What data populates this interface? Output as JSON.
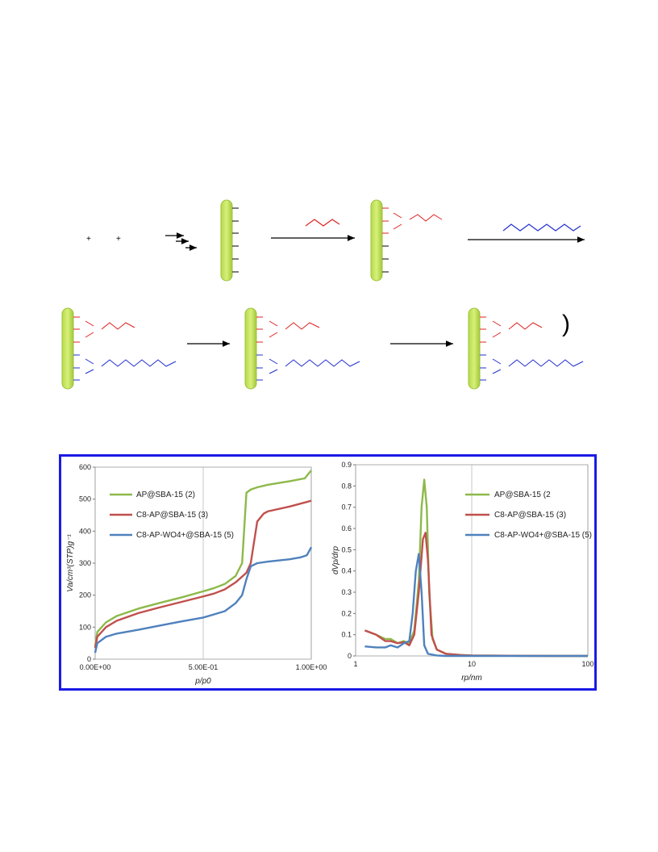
{
  "scheme": {
    "plus_signs": [
      "+",
      "+"
    ],
    "close_paren": ")"
  },
  "chart_data": [
    {
      "type": "line",
      "title": "",
      "xlabel": "p/p0",
      "ylabel": "Va/cm³(STP)g⁻¹",
      "xlim": [
        0,
        1
      ],
      "ylim": [
        0,
        600
      ],
      "x_tick_labels": [
        "0.00E+00",
        "5.00E-01",
        "1.00E+00"
      ],
      "y_ticks": [
        0,
        100,
        200,
        300,
        400,
        500,
        600
      ],
      "grid": "vertical",
      "legend": "top-left",
      "series": [
        {
          "name": "AP@SBA-15 (2)",
          "color": "#8db94a",
          "x": [
            0.0,
            0.01,
            0.05,
            0.1,
            0.2,
            0.3,
            0.4,
            0.5,
            0.55,
            0.6,
            0.65,
            0.68,
            0.7,
            0.72,
            0.75,
            0.8,
            0.9,
            0.97,
            1.0
          ],
          "y": [
            40,
            85,
            115,
            135,
            158,
            176,
            193,
            212,
            222,
            235,
            260,
            300,
            520,
            530,
            537,
            545,
            556,
            565,
            590
          ]
        },
        {
          "name": "C8-AP@SBA-15 (3)",
          "color": "#c0504d",
          "x": [
            0.0,
            0.01,
            0.05,
            0.1,
            0.2,
            0.3,
            0.4,
            0.5,
            0.55,
            0.6,
            0.65,
            0.7,
            0.72,
            0.75,
            0.78,
            0.8,
            0.9,
            1.0
          ],
          "y": [
            35,
            70,
            100,
            120,
            144,
            162,
            179,
            196,
            205,
            218,
            240,
            270,
            300,
            430,
            455,
            462,
            477,
            495
          ]
        },
        {
          "name": "C8-AP-WO4+@SBA-15 (5)",
          "color": "#4f81bd",
          "x": [
            0.0,
            0.01,
            0.05,
            0.1,
            0.2,
            0.3,
            0.4,
            0.5,
            0.55,
            0.6,
            0.65,
            0.68,
            0.7,
            0.72,
            0.75,
            0.8,
            0.9,
            0.95,
            0.98,
            1.0
          ],
          "y": [
            20,
            50,
            70,
            80,
            92,
            105,
            118,
            130,
            140,
            150,
            175,
            200,
            250,
            290,
            300,
            305,
            312,
            318,
            325,
            350
          ]
        }
      ]
    },
    {
      "type": "line",
      "title": "",
      "xlabel": "rp/nm",
      "ylabel": "dVp/drp",
      "xscale": "log",
      "xlim": [
        1,
        100
      ],
      "ylim": [
        0,
        0.9
      ],
      "x_ticks": [
        1,
        10,
        100
      ],
      "y_ticks": [
        0,
        0.1,
        0.2,
        0.3,
        0.4,
        0.5,
        0.6,
        0.7,
        0.8,
        0.9
      ],
      "grid": "vertical",
      "legend": "top-right",
      "series": [
        {
          "name": "AP@SBA-15 (2",
          "color": "#8db94a",
          "x": [
            1.2,
            1.5,
            1.8,
            2.0,
            2.3,
            2.6,
            2.9,
            3.2,
            3.5,
            3.7,
            3.9,
            4.1,
            4.3,
            4.6,
            5.0,
            6,
            8,
            10,
            20,
            50,
            100
          ],
          "y": [
            0.12,
            0.1,
            0.08,
            0.08,
            0.06,
            0.07,
            0.06,
            0.12,
            0.35,
            0.7,
            0.83,
            0.7,
            0.3,
            0.08,
            0.03,
            0.01,
            0.005,
            0.002,
            0.001,
            0.0,
            0.0
          ]
        },
        {
          "name": "C8-AP@SBA-15 (3)",
          "color": "#c0504d",
          "x": [
            1.2,
            1.5,
            1.8,
            2.0,
            2.3,
            2.6,
            2.9,
            3.2,
            3.5,
            3.8,
            4.0,
            4.2,
            4.5,
            5.0,
            6,
            8,
            10,
            20,
            50,
            100
          ],
          "y": [
            0.12,
            0.1,
            0.07,
            0.07,
            0.06,
            0.065,
            0.05,
            0.1,
            0.3,
            0.55,
            0.58,
            0.45,
            0.1,
            0.03,
            0.01,
            0.004,
            0.002,
            0.001,
            0.0,
            0.0
          ]
        },
        {
          "name": "C8-AP-WO4+@SBA-15 (5)",
          "color": "#4f81bd",
          "x": [
            1.2,
            1.5,
            1.8,
            2.0,
            2.3,
            2.6,
            2.9,
            3.1,
            3.3,
            3.5,
            3.7,
            3.9,
            4.2,
            5,
            6,
            10,
            100
          ],
          "y": [
            0.045,
            0.04,
            0.04,
            0.05,
            0.04,
            0.06,
            0.07,
            0.2,
            0.4,
            0.48,
            0.3,
            0.05,
            0.01,
            0.002,
            0.0,
            0.0,
            0.0
          ]
        }
      ]
    }
  ]
}
